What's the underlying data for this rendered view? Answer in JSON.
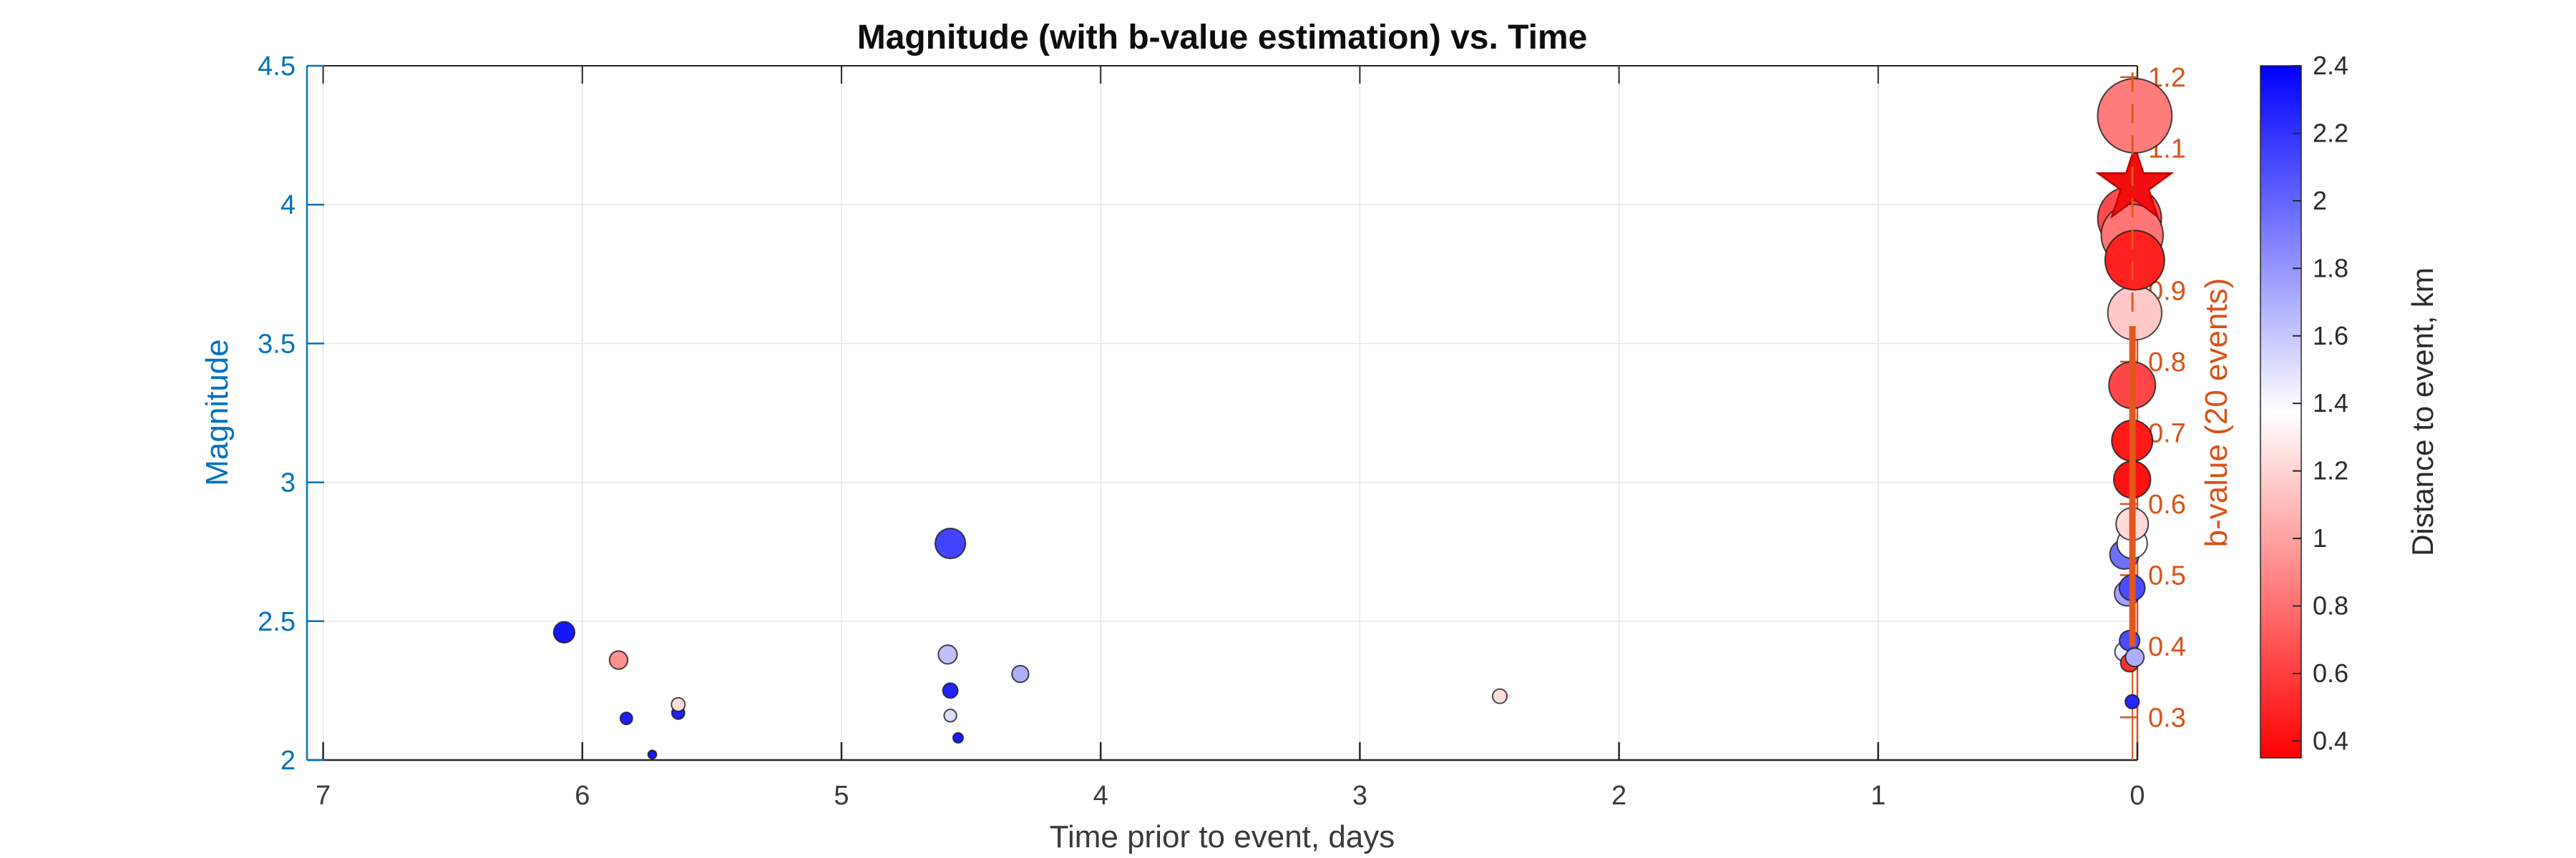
{
  "chart_data": {
    "type": "scatter",
    "title": "Magnitude (with b-value estimation) vs. Time",
    "xlabel": "Time prior to event, days",
    "ylabel_left": "Magnitude",
    "ylabel_right": "b-value (20 events)",
    "x_axis": {
      "min": 0,
      "max": 7,
      "reversed": true,
      "ticks": [
        7,
        6,
        5,
        4,
        3,
        2,
        1,
        0
      ],
      "tick_labels": [
        "7",
        "6",
        "5",
        "4",
        "3",
        "2",
        "1",
        "0"
      ],
      "grid": true
    },
    "y_axis_left": {
      "min": 2,
      "max": 4.5,
      "ticks": [
        2,
        2.5,
        3,
        3.5,
        4,
        4.5
      ],
      "tick_labels": [
        "2",
        "2.5",
        "3",
        "3.5",
        "4",
        "4.5"
      ],
      "grid_ticks": [
        2.5,
        3,
        3.5,
        4
      ],
      "color": "#0072BD",
      "grid": true
    },
    "y_axis_right": {
      "min": 0.24,
      "max": 1.216,
      "ticks": [
        0.3,
        0.4,
        0.5,
        0.6,
        0.7,
        0.8,
        0.9,
        1,
        1.1,
        1.2
      ],
      "tick_labels": [
        "0.3",
        "0.4",
        "0.5",
        "0.6",
        "0.7",
        "0.8",
        "0.9",
        "1",
        "1.1",
        "1.2"
      ],
      "color": "#D95319"
    },
    "events": [
      {
        "t": 6.07,
        "m": 2.46,
        "d": 2.32
      },
      {
        "t": 5.86,
        "m": 2.36,
        "d": 0.93
      },
      {
        "t": 5.83,
        "m": 2.15,
        "d": 2.28
      },
      {
        "t": 5.73,
        "m": 2.02,
        "d": 2.3
      },
      {
        "t": 5.63,
        "m": 2.17,
        "d": 2.28
      },
      {
        "t": 5.63,
        "m": 2.2,
        "d": 1.24
      },
      {
        "t": 4.58,
        "m": 2.78,
        "d": 2.13
      },
      {
        "t": 4.59,
        "m": 2.38,
        "d": 1.63
      },
      {
        "t": 4.58,
        "m": 2.25,
        "d": 2.26
      },
      {
        "t": 4.58,
        "m": 2.16,
        "d": 1.51
      },
      {
        "t": 4.55,
        "m": 2.08,
        "d": 2.3
      },
      {
        "t": 4.31,
        "m": 2.31,
        "d": 1.7
      },
      {
        "t": 2.46,
        "m": 2.23,
        "d": 1.24
      },
      {
        "t": 0.02,
        "m": 2.21,
        "d": 2.25
      },
      {
        "t": 0.05,
        "m": 2.39,
        "d": 1.45
      },
      {
        "t": 0.03,
        "m": 2.35,
        "d": 0.55
      },
      {
        "t": 0.03,
        "m": 2.43,
        "d": 2.1
      },
      {
        "t": 0.01,
        "m": 2.37,
        "d": 1.7
      },
      {
        "t": 0.04,
        "m": 2.6,
        "d": 1.75
      },
      {
        "t": 0.02,
        "m": 2.62,
        "d": 2.1
      },
      {
        "t": 0.05,
        "m": 2.74,
        "d": 1.95
      },
      {
        "t": 0.02,
        "m": 2.78,
        "d": 1.38
      },
      {
        "t": 0.02,
        "m": 2.85,
        "d": 1.22
      },
      {
        "t": 0.02,
        "m": 3.01,
        "d": 0.42
      },
      {
        "t": 0.02,
        "m": 3.15,
        "d": 0.45
      },
      {
        "t": 0.02,
        "m": 3.35,
        "d": 0.63
      },
      {
        "t": 0.01,
        "m": 3.61,
        "d": 1.15
      },
      {
        "t": 0.03,
        "m": 3.95,
        "d": 0.65
      },
      {
        "t": 0.02,
        "m": 3.89,
        "d": 0.82
      },
      {
        "t": 0.01,
        "m": 3.8,
        "d": 0.48
      },
      {
        "t": 0.01,
        "m": 4.07,
        "d": 0.36,
        "marker": "star"
      },
      {
        "t": 0.01,
        "m": 4.32,
        "d": 0.85
      }
    ],
    "b_value_line": {
      "t": 0.019,
      "color": "#e2571d",
      "solid_thin_b": [
        0.24,
        0.4
      ],
      "solid_thick_b": [
        0.4,
        0.85
      ],
      "dashed_b": [
        0.87,
        1.215
      ]
    },
    "colorbar": {
      "label": "Distance to event, km",
      "min": 0.35,
      "max": 2.4,
      "ticks": [
        0.4,
        0.6,
        0.8,
        1,
        1.2,
        1.4,
        1.6,
        1.8,
        2,
        2.2,
        2.4
      ],
      "tick_labels": [
        "0.4",
        "0.6",
        "0.8",
        "1",
        "1.2",
        "1.4",
        "1.6",
        "1.8",
        "2",
        "2.2",
        "2.4"
      ],
      "color_bottom": "#ff0000",
      "color_middle": "#ffffff",
      "color_top": "#0000ff"
    },
    "colors": {
      "left_axis": "#0072BD",
      "right_axis": "#D95319",
      "x_axis": "#262626",
      "grid": "#e3e8ec",
      "star_fill": "#f10e0e",
      "star_edge": "#c00000",
      "marker_edge": "#1a1a1a"
    }
  }
}
